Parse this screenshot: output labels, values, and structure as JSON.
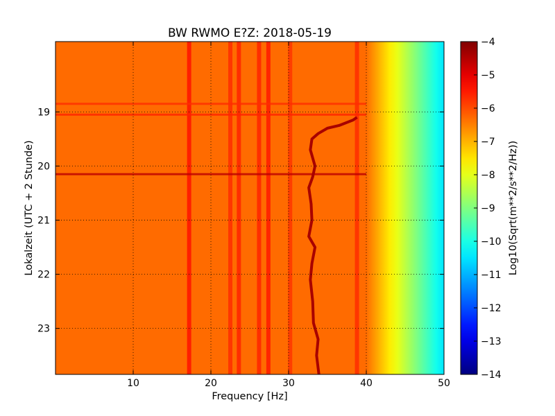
{
  "chart_data": {
    "type": "heatmap",
    "title": "BW RWMO E?Z: 2018-05-19",
    "xlabel": "Frequency [Hz]",
    "ylabel": "Lokalzeit (UTC + 2 Stunde)",
    "xlim": [
      0,
      50
    ],
    "ylim": [
      17.7,
      23.85
    ],
    "y_inverted": true,
    "x_ticks": [
      10,
      20,
      30,
      40,
      50
    ],
    "x_tick_labels": [
      "10",
      "20",
      "30",
      "40",
      "50"
    ],
    "y_ticks": [
      19,
      20,
      21,
      22,
      23
    ],
    "y_tick_labels": [
      "19",
      "20",
      "21",
      "22",
      "23"
    ],
    "grid": true,
    "colormap": "jet",
    "colorbar": {
      "label": "Log10(Sqrt(m**2/s**2/Hz))",
      "range": [
        -14,
        -4
      ],
      "ticks": [
        -4,
        -5,
        -6,
        -7,
        -8,
        -9,
        -10,
        -11,
        -12,
        -13,
        -14
      ],
      "tick_labels": [
        "−4",
        "−5",
        "−6",
        "−7",
        "−8",
        "−9",
        "−10",
        "−11",
        "−12",
        "−13",
        "−14"
      ]
    },
    "background_level": -6.3,
    "rolloff": {
      "start_hz": 40,
      "end_hz": 50,
      "level_at_start": -6.3,
      "level_at_end": -10.5
    },
    "vertical_bands": [
      {
        "freq_hz": 17.2,
        "level": -5.3
      },
      {
        "freq_hz": 22.5,
        "level": -5.6
      },
      {
        "freq_hz": 23.6,
        "level": -5.5
      },
      {
        "freq_hz": 26.2,
        "level": -5.5
      },
      {
        "freq_hz": 27.4,
        "level": -5.4
      },
      {
        "freq_hz": 30.2,
        "level": -5.7
      },
      {
        "freq_hz": 38.8,
        "level": -5.6
      }
    ],
    "horizontal_bands": [
      {
        "time_h": 18.85,
        "level": -5.7
      },
      {
        "time_h": 19.05,
        "level": -5.6
      },
      {
        "time_h": 20.15,
        "level": -4.6
      }
    ],
    "tremor_track": {
      "level": -4.4,
      "points": [
        {
          "t": 19.1,
          "f": 38.8
        },
        {
          "t": 19.15,
          "f": 38.3
        },
        {
          "t": 19.25,
          "f": 36.5
        },
        {
          "t": 19.3,
          "f": 35.0
        },
        {
          "t": 19.4,
          "f": 33.8
        },
        {
          "t": 19.5,
          "f": 33.0
        },
        {
          "t": 19.7,
          "f": 32.8
        },
        {
          "t": 20.0,
          "f": 33.4
        },
        {
          "t": 20.2,
          "f": 33.1
        },
        {
          "t": 20.4,
          "f": 32.6
        },
        {
          "t": 20.7,
          "f": 32.9
        },
        {
          "t": 21.0,
          "f": 33.0
        },
        {
          "t": 21.3,
          "f": 32.6
        },
        {
          "t": 21.5,
          "f": 33.4
        },
        {
          "t": 21.8,
          "f": 33.0
        },
        {
          "t": 22.1,
          "f": 32.8
        },
        {
          "t": 22.5,
          "f": 33.1
        },
        {
          "t": 22.9,
          "f": 33.2
        },
        {
          "t": 23.2,
          "f": 33.8
        },
        {
          "t": 23.5,
          "f": 33.6
        },
        {
          "t": 23.85,
          "f": 33.9
        }
      ]
    }
  }
}
